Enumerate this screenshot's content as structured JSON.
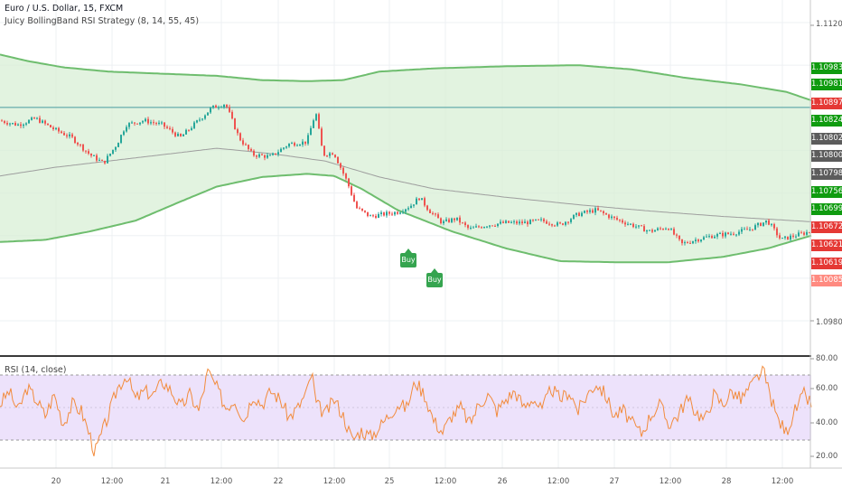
{
  "header": {
    "symbol_line": "Euro / U.S. Dollar, 15, FXCM",
    "strategy_line": "Juicy BollingBand RSI Strategy (8, 14, 55, 45)"
  },
  "rsi_header": "RSI (14, close)",
  "colors": {
    "band_line": "#6ebd6e",
    "band_fill": "#d8efd6",
    "up_candle": "#26a69a",
    "down_candle": "#ef5350",
    "ma_line": "#9e9e9e",
    "hline": "#4a9da0",
    "rsi_line": "#f28b3c",
    "rsi_band": "#ede2fb",
    "buy_signal": "#35a44f"
  },
  "price_tags": [
    {
      "label": "1.10983",
      "color": "#0f9b0f"
    },
    {
      "label": "1.10981",
      "color": "#0f9b0f"
    },
    {
      "label": "1.10897",
      "color": "#e53935"
    },
    {
      "label": "1.10824",
      "color": "#0f9b0f"
    },
    {
      "label": "1.10802",
      "color": "#5c5c5c"
    },
    {
      "label": "1.10800",
      "color": "#5c5c5c"
    },
    {
      "label": "1.10798",
      "color": "#5c5c5c"
    },
    {
      "label": "1.10756",
      "color": "#0f9b0f"
    },
    {
      "label": "1.10699",
      "color": "#0f9b0f"
    },
    {
      "label": "1.10672",
      "color": "#e53935"
    },
    {
      "label": "1.10621",
      "color": "#e53935"
    },
    {
      "label": "1.10619",
      "color": "#e53935"
    },
    {
      "label": "1.10085",
      "color": "#ff8a80"
    }
  ],
  "signals": [
    {
      "label": "Buy"
    },
    {
      "label": "Buy"
    }
  ],
  "chart_data": [
    {
      "type": "line",
      "title": "Euro / U.S. Dollar, 15, FXCM",
      "subtitle": "Juicy BollingBand RSI Strategy (8, 14, 55, 45)",
      "y_axis_ticks": [
        "1.11200",
        "1.09800"
      ],
      "x_axis_ticks": [
        "20",
        "12:00",
        "21",
        "12:00",
        "22",
        "12:00",
        "25",
        "12:00",
        "26",
        "12:00",
        "27",
        "12:00",
        "28",
        "12:00"
      ],
      "series": [
        {
          "name": "Upper band",
          "points": [
            [
              0,
              1.1105
            ],
            [
              30,
              1.1102
            ],
            [
              70,
              1.1099
            ],
            [
              120,
              1.1097
            ],
            [
              180,
              1.1096
            ],
            [
              240,
              1.1095
            ],
            [
              290,
              1.1093
            ],
            [
              340,
              1.10925
            ],
            [
              380,
              1.1093
            ],
            [
              420,
              1.1097
            ],
            [
              480,
              1.10985
            ],
            [
              560,
              1.10995
            ],
            [
              640,
              1.11
            ],
            [
              700,
              1.1098
            ],
            [
              760,
              1.1094
            ],
            [
              820,
              1.1091
            ],
            [
              870,
              1.10875
            ],
            [
              898,
              1.10835
            ]
          ]
        },
        {
          "name": "Lower band",
          "points": [
            [
              0,
              1.1017
            ],
            [
              50,
              1.1018
            ],
            [
              100,
              1.1022
            ],
            [
              150,
              1.1027
            ],
            [
              200,
              1.1036
            ],
            [
              240,
              1.1043
            ],
            [
              290,
              1.10475
            ],
            [
              340,
              1.1049
            ],
            [
              370,
              1.1048
            ],
            [
              400,
              1.1042
            ],
            [
              440,
              1.1032
            ],
            [
              500,
              1.1022
            ],
            [
              560,
              1.1014
            ],
            [
              620,
              1.1008
            ],
            [
              680,
              1.10075
            ],
            [
              740,
              1.10075
            ],
            [
              800,
              1.101
            ],
            [
              850,
              1.1014
            ],
            [
              898,
              1.102
            ]
          ]
        },
        {
          "name": "Moving average",
          "points": [
            [
              0,
              1.1048
            ],
            [
              60,
              1.1052
            ],
            [
              120,
              1.1055
            ],
            [
              180,
              1.1058
            ],
            [
              240,
              1.1061
            ],
            [
              300,
              1.10585
            ],
            [
              360,
              1.1055
            ],
            [
              420,
              1.10475
            ],
            [
              480,
              1.1042
            ],
            [
              560,
              1.1038
            ],
            [
              640,
              1.10345
            ],
            [
              720,
              1.10315
            ],
            [
              800,
              1.1029
            ],
            [
              898,
              1.10265
            ]
          ]
        },
        {
          "name": "Price",
          "points": [
            [
              0,
              1.1074
            ],
            [
              20,
              1.1072
            ],
            [
              40,
              1.1075
            ],
            [
              60,
              1.107
            ],
            [
              80,
              1.1066
            ],
            [
              100,
              1.1058
            ],
            [
              115,
              1.1054
            ],
            [
              130,
              1.1063
            ],
            [
              140,
              1.1072
            ],
            [
              160,
              1.1074
            ],
            [
              180,
              1.1072
            ],
            [
              200,
              1.1066
            ],
            [
              220,
              1.1074
            ],
            [
              235,
              1.108
            ],
            [
              250,
              1.1082
            ],
            [
              265,
              1.1066
            ],
            [
              280,
              1.1058
            ],
            [
              300,
              1.1057
            ],
            [
              320,
              1.1063
            ],
            [
              340,
              1.1064
            ],
            [
              350,
              1.1078
            ],
            [
              358,
              1.1058
            ],
            [
              370,
              1.1059
            ],
            [
              385,
              1.1045
            ],
            [
              395,
              1.1033
            ],
            [
              410,
              1.1029
            ],
            [
              425,
              1.103
            ],
            [
              440,
              1.1031
            ],
            [
              455,
              1.1034
            ],
            [
              465,
              1.1038
            ],
            [
              475,
              1.1032
            ],
            [
              490,
              1.1026
            ],
            [
              505,
              1.1028
            ],
            [
              520,
              1.1023
            ],
            [
              540,
              1.1025
            ],
            [
              560,
              1.1026
            ],
            [
              580,
              1.1026
            ],
            [
              600,
              1.1027
            ],
            [
              620,
              1.1025
            ],
            [
              640,
              1.103
            ],
            [
              660,
              1.1032
            ],
            [
              680,
              1.1028
            ],
            [
              700,
              1.1025
            ],
            [
              720,
              1.1022
            ],
            [
              740,
              1.1024
            ],
            [
              755,
              1.1016
            ],
            [
              770,
              1.1018
            ],
            [
              790,
              1.102
            ],
            [
              810,
              1.1021
            ],
            [
              830,
              1.1023
            ],
            [
              850,
              1.1027
            ],
            [
              865,
              1.1018
            ],
            [
              880,
              1.102
            ],
            [
              898,
              1.1022
            ]
          ]
        }
      ],
      "horizontal_line": 1.10802
    },
    {
      "type": "line",
      "title": "RSI (14, close)",
      "ylim": [
        10,
        80
      ],
      "y_axis_ticks": [
        "80.00",
        "60.00",
        "40.00",
        "20.00"
      ],
      "bands": [
        30,
        70
      ],
      "series": [
        {
          "name": "RSI",
          "points": [
            [
              0,
              52
            ],
            [
              10,
              60
            ],
            [
              20,
              48
            ],
            [
              30,
              62
            ],
            [
              40,
              55
            ],
            [
              50,
              45
            ],
            [
              60,
              58
            ],
            [
              70,
              40
            ],
            [
              80,
              52
            ],
            [
              90,
              48
            ],
            [
              100,
              32
            ],
            [
              105,
              22
            ],
            [
              110,
              30
            ],
            [
              120,
              45
            ],
            [
              130,
              62
            ],
            [
              140,
              70
            ],
            [
              150,
              55
            ],
            [
              160,
              60
            ],
            [
              170,
              58
            ],
            [
              180,
              66
            ],
            [
              190,
              60
            ],
            [
              200,
              50
            ],
            [
              210,
              58
            ],
            [
              220,
              48
            ],
            [
              230,
              72
            ],
            [
              240,
              62
            ],
            [
              250,
              50
            ],
            [
              260,
              55
            ],
            [
              270,
              42
            ],
            [
              280,
              58
            ],
            [
              290,
              52
            ],
            [
              300,
              60
            ],
            [
              310,
              55
            ],
            [
              320,
              44
            ],
            [
              330,
              50
            ],
            [
              340,
              60
            ],
            [
              345,
              72
            ],
            [
              350,
              52
            ],
            [
              360,
              46
            ],
            [
              370,
              55
            ],
            [
              380,
              45
            ],
            [
              390,
              30
            ],
            [
              400,
              36
            ],
            [
              410,
              32
            ],
            [
              420,
              38
            ],
            [
              430,
              45
            ],
            [
              440,
              52
            ],
            [
              450,
              50
            ],
            [
              460,
              66
            ],
            [
              470,
              58
            ],
            [
              480,
              42
            ],
            [
              490,
              35
            ],
            [
              500,
              45
            ],
            [
              510,
              50
            ],
            [
              520,
              40
            ],
            [
              530,
              52
            ],
            [
              540,
              58
            ],
            [
              550,
              48
            ],
            [
              560,
              55
            ],
            [
              570,
              60
            ],
            [
              580,
              50
            ],
            [
              590,
              56
            ],
            [
              600,
              48
            ],
            [
              610,
              62
            ],
            [
              620,
              55
            ],
            [
              630,
              60
            ],
            [
              640,
              48
            ],
            [
              650,
              58
            ],
            [
              660,
              65
            ],
            [
              670,
              58
            ],
            [
              680,
              45
            ],
            [
              690,
              48
            ],
            [
              700,
              40
            ],
            [
              710,
              34
            ],
            [
              720,
              45
            ],
            [
              730,
              52
            ],
            [
              740,
              40
            ],
            [
              750,
              45
            ],
            [
              760,
              55
            ],
            [
              770,
              48
            ],
            [
              780,
              42
            ],
            [
              790,
              58
            ],
            [
              800,
              52
            ],
            [
              810,
              60
            ],
            [
              820,
              55
            ],
            [
              830,
              62
            ],
            [
              840,
              70
            ],
            [
              845,
              72
            ],
            [
              850,
              62
            ],
            [
              860,
              44
            ],
            [
              870,
              35
            ],
            [
              880,
              48
            ],
            [
              890,
              58
            ],
            [
              898,
              52
            ]
          ]
        }
      ]
    }
  ]
}
